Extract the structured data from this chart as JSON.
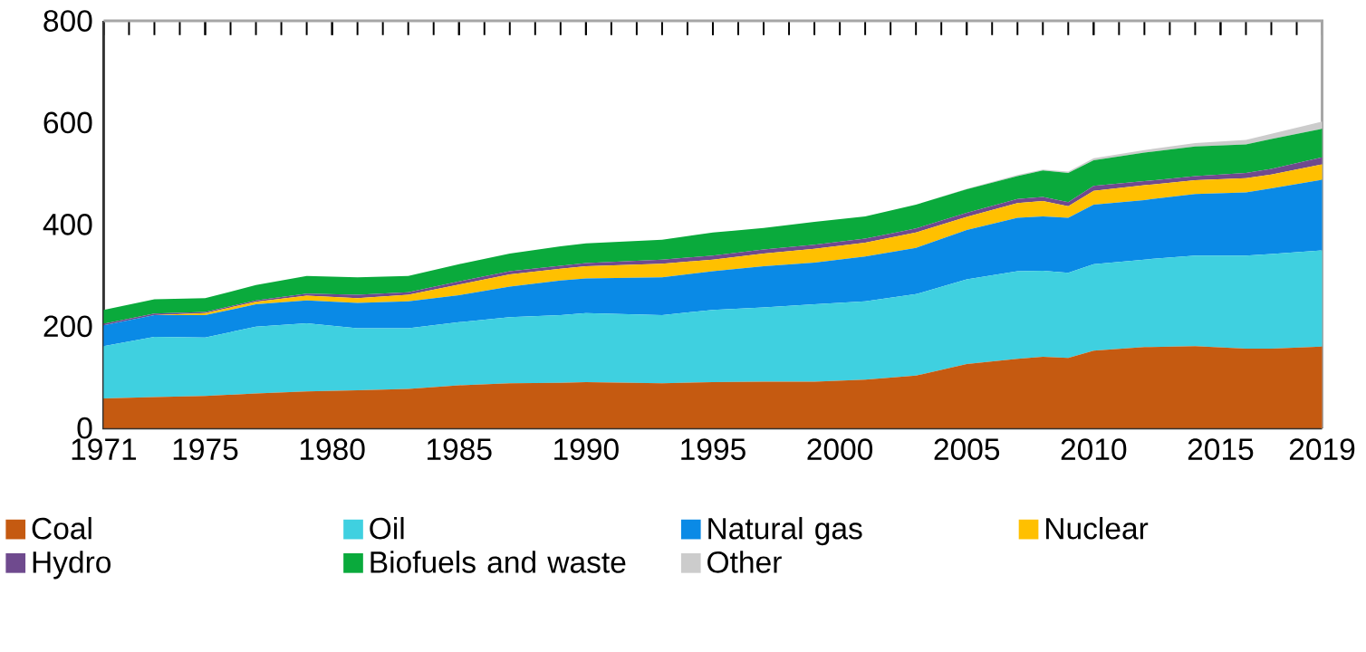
{
  "chart_data": {
    "type": "area",
    "stacked": true,
    "x": [
      1971,
      1973,
      1975,
      1977,
      1979,
      1981,
      1983,
      1985,
      1987,
      1989,
      1990,
      1993,
      1995,
      1997,
      1999,
      2001,
      2003,
      2005,
      2007,
      2008,
      2009,
      2010,
      2012,
      2014,
      2016,
      2017,
      2019
    ],
    "xlim": [
      1971,
      2019
    ],
    "xticks": [
      1971,
      1975,
      1980,
      1985,
      1990,
      1995,
      2000,
      2005,
      2010,
      2015,
      2019
    ],
    "ylim": [
      0,
      800
    ],
    "yticks": [
      0,
      200,
      400,
      600,
      800
    ],
    "legend": "bottom",
    "series": [
      {
        "name": "Coal",
        "color": "#c55a11",
        "values": [
          58,
          61,
          63,
          68,
          72,
          74,
          77,
          84,
          88,
          89,
          90,
          88,
          90,
          91,
          91,
          95,
          103,
          126,
          136,
          140,
          138,
          152,
          159,
          161,
          156,
          156,
          160
        ]
      },
      {
        "name": "Oil",
        "color": "#3fd0e0",
        "values": [
          103,
          118,
          115,
          131,
          134,
          122,
          119,
          124,
          130,
          133,
          136,
          134,
          142,
          146,
          152,
          154,
          160,
          166,
          172,
          169,
          167,
          170,
          172,
          178,
          183,
          186,
          189
        ]
      },
      {
        "name": "Natural gas",
        "color": "#0a8ae6",
        "values": [
          41,
          43,
          44,
          44,
          45,
          50,
          53,
          53,
          60,
          68,
          68,
          74,
          76,
          81,
          82,
          88,
          91,
          97,
          105,
          107,
          108,
          117,
          117,
          121,
          124,
          129,
          139
        ]
      },
      {
        "name": "Nuclear",
        "color": "#ffc000",
        "values": [
          0,
          0,
          4,
          5,
          9,
          9,
          13,
          21,
          24,
          23,
          24,
          27,
          23,
          25,
          27,
          27,
          30,
          26,
          29,
          30,
          23,
          27,
          29,
          27,
          28,
          27,
          30
        ]
      },
      {
        "name": "Hydro",
        "color": "#6f4a8e",
        "values": [
          3,
          3,
          2,
          3,
          4,
          7,
          5,
          6,
          6,
          6,
          6,
          8,
          8,
          8,
          8,
          8,
          8,
          8,
          8,
          8,
          8,
          10,
          8,
          8,
          10,
          11,
          14
        ]
      },
      {
        "name": "Biofuels and waste",
        "color": "#0aaa3c",
        "values": [
          27,
          28,
          27,
          30,
          35,
          34,
          32,
          34,
          35,
          38,
          39,
          39,
          45,
          42,
          45,
          44,
          47,
          46,
          45,
          52,
          57,
          50,
          56,
          58,
          56,
          59,
          56
        ]
      },
      {
        "name": "Other",
        "color": "#cccccc",
        "values": [
          0,
          0,
          0,
          0,
          0,
          0,
          0,
          0,
          0,
          0,
          0,
          0,
          0,
          0,
          0,
          0,
          0,
          1,
          2,
          2,
          3,
          4,
          5,
          7,
          9,
          10,
          14
        ]
      }
    ]
  }
}
